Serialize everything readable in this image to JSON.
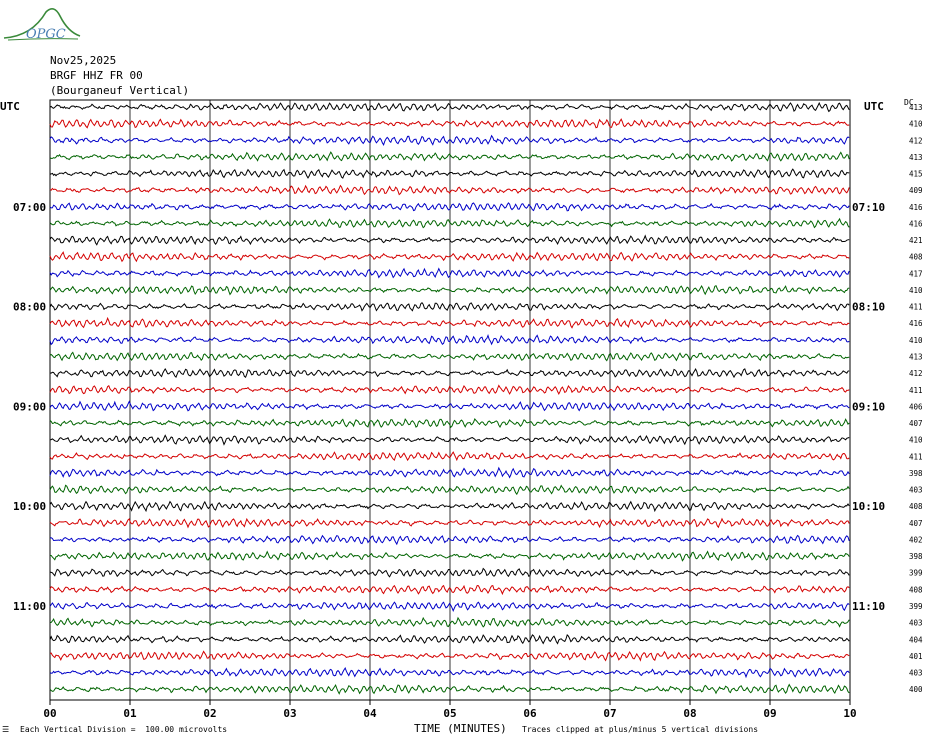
{
  "header": {
    "date": "Nov25,2025",
    "station": "BRGF HHZ FR 00",
    "station_desc": "(Bourganeuf Vertical)"
  },
  "logo": {
    "text": "OPGC"
  },
  "labels": {
    "utc_left": "UTC",
    "utc_right": "UTC",
    "dc_header": "DC"
  },
  "footer": {
    "division_note": "Each Vertical Division =  100.00 microvolts",
    "clip_note": "Traces clipped at plus/minus 5 vertical divisions",
    "corner_mark": "☰"
  },
  "colors": {
    "trace_cycle": [
      "#000000",
      "#d40000",
      "#0000c8",
      "#006400"
    ],
    "grid": "#000000"
  },
  "chart_data": {
    "type": "line",
    "title": "BRGF HHZ FR 00 (Bourganeuf Vertical)",
    "xlabel": "TIME (MINUTES)",
    "ylabel": "UTC",
    "xlim": [
      0,
      10
    ],
    "x_ticks": [
      "00",
      "01",
      "02",
      "03",
      "04",
      "05",
      "06",
      "07",
      "08",
      "09",
      "10"
    ],
    "grid": true,
    "traces_per_hour": 6,
    "left_hour_labels": [
      {
        "row": 6,
        "label": "07:00"
      },
      {
        "row": 12,
        "label": "08:00"
      },
      {
        "row": 18,
        "label": "09:00"
      },
      {
        "row": 24,
        "label": "10:00"
      },
      {
        "row": 30,
        "label": "11:00"
      }
    ],
    "right_hour_labels": [
      {
        "row": 6,
        "label": "07:10"
      },
      {
        "row": 12,
        "label": "08:10"
      },
      {
        "row": 18,
        "label": "09:10"
      },
      {
        "row": 24,
        "label": "10:10"
      },
      {
        "row": 30,
        "label": "11:10"
      }
    ],
    "dc_offsets": [
      413,
      410,
      412,
      413,
      415,
      409,
      416,
      416,
      421,
      408,
      417,
      410,
      411,
      416,
      410,
      413,
      412,
      411,
      406,
      407,
      410,
      411,
      398,
      403,
      408,
      407,
      402,
      398,
      399,
      408,
      399,
      403,
      404,
      401,
      403,
      400
    ]
  }
}
